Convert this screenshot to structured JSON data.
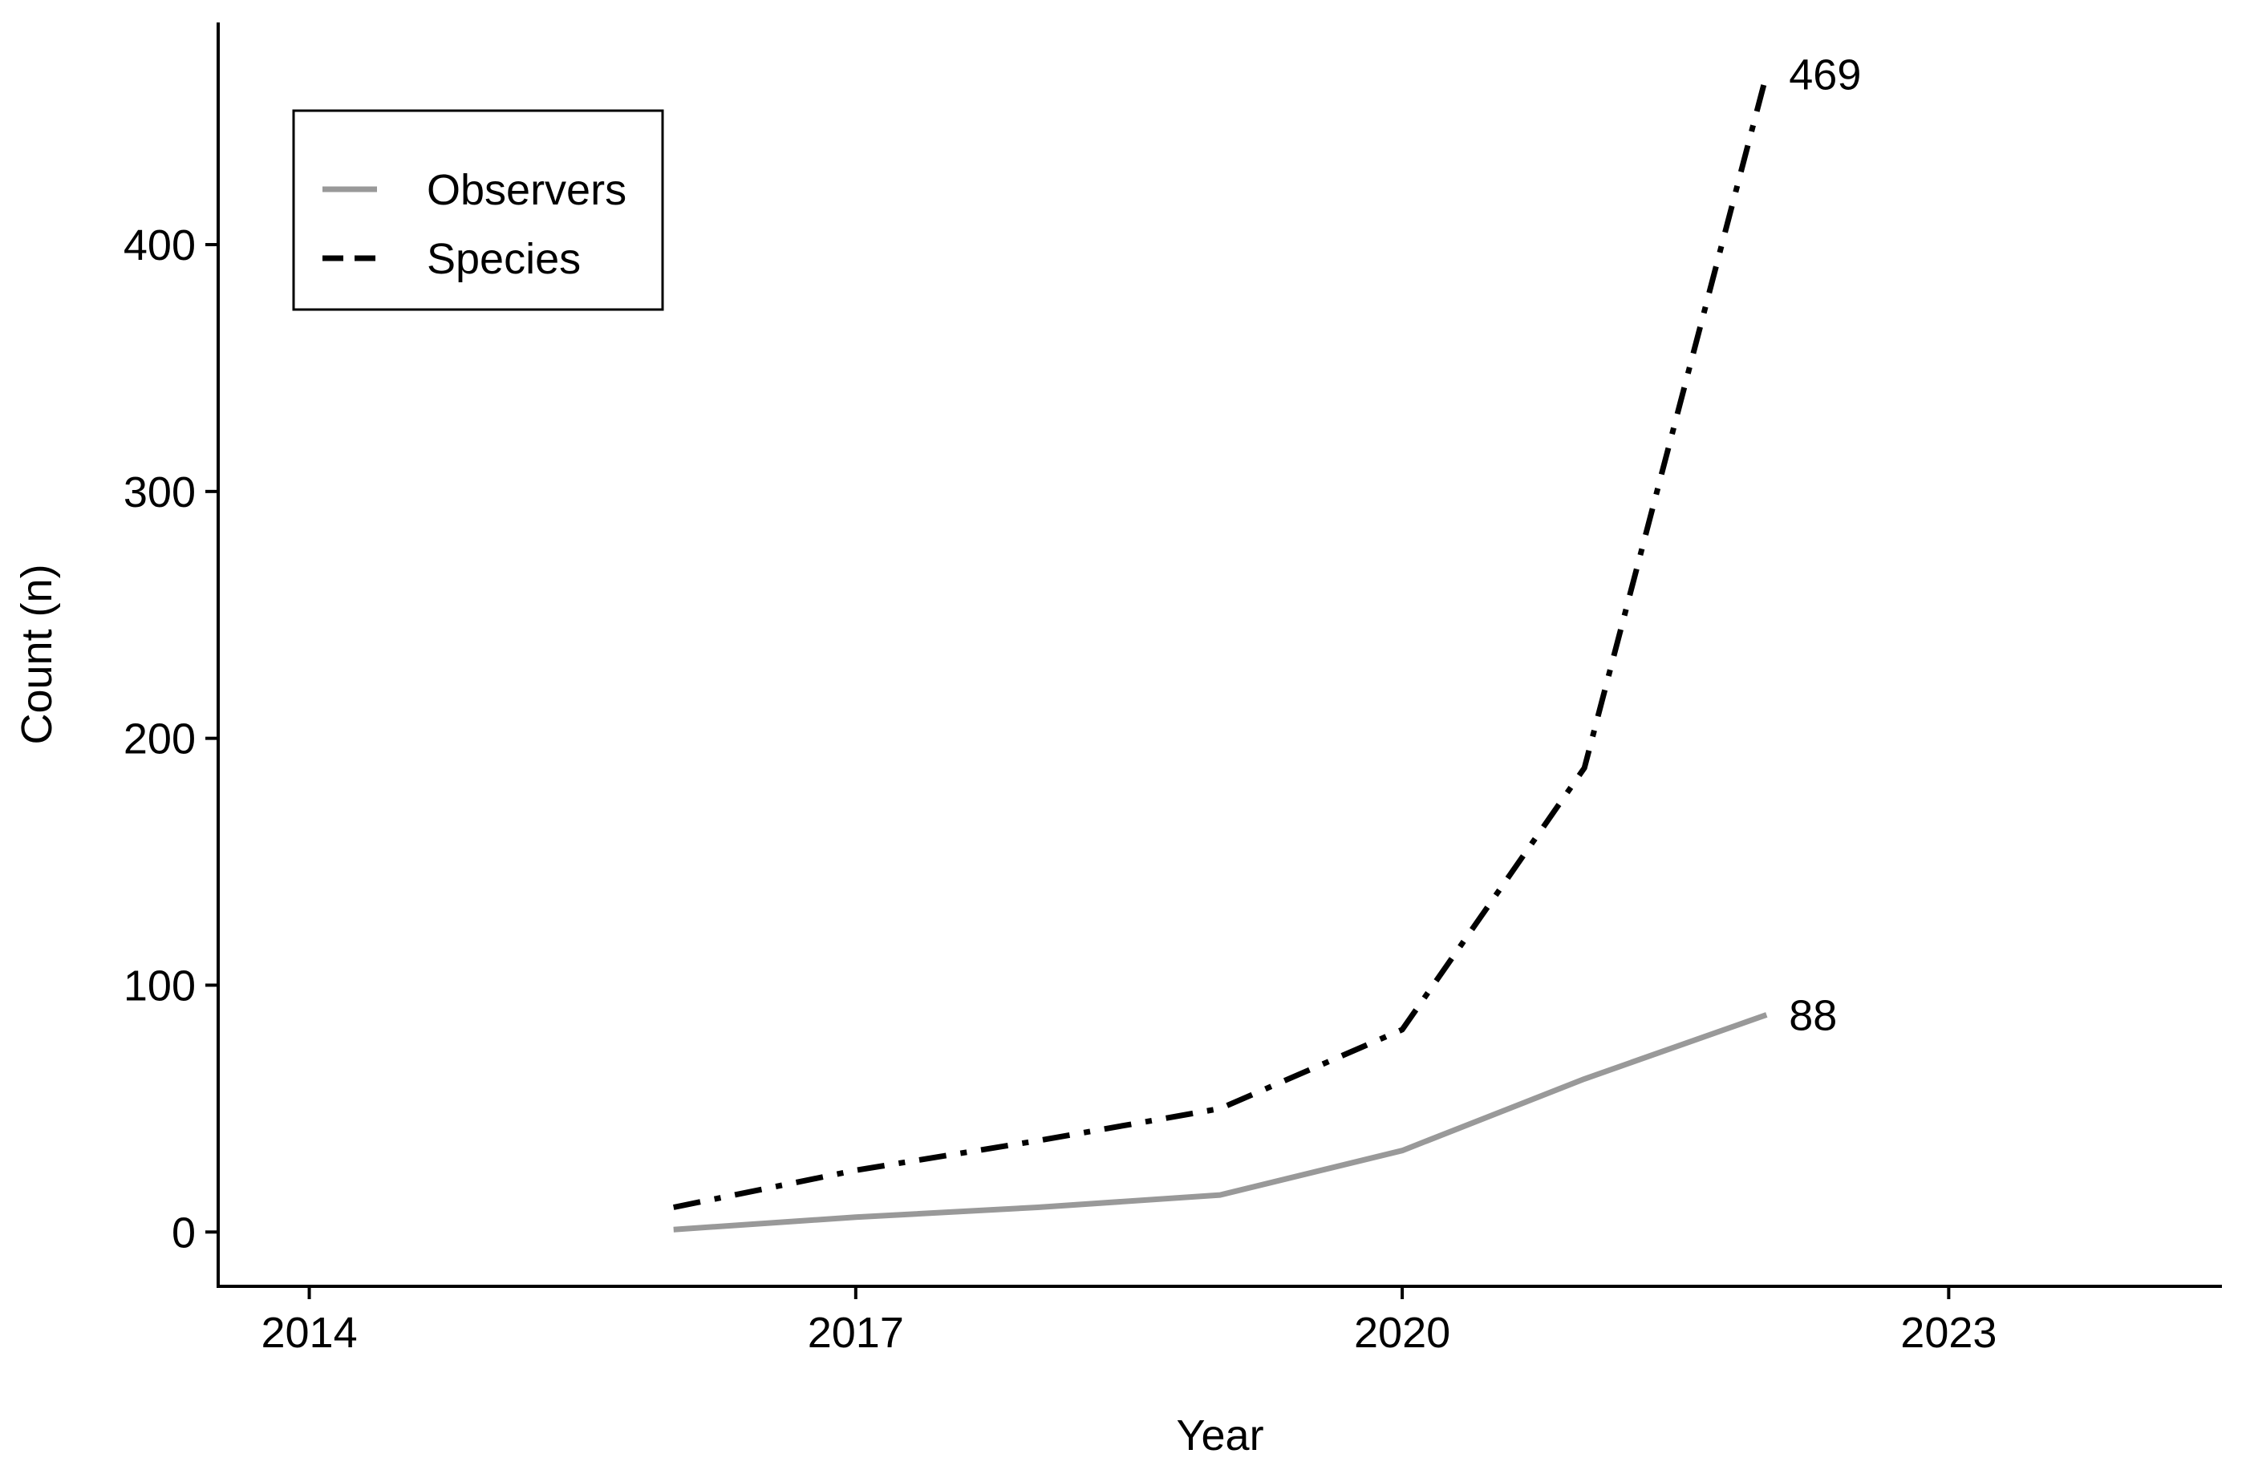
{
  "chart_data": {
    "type": "line",
    "title": "",
    "xlabel": "Year",
    "ylabel": "Count (n)",
    "xlim": [
      2013.5,
      2024.5
    ],
    "ylim": [
      -22,
      490
    ],
    "xticks": [
      2014,
      2017,
      2020,
      2023
    ],
    "yticks": [
      0,
      100,
      200,
      300,
      400
    ],
    "grid": false,
    "legend": "top-left",
    "series": [
      {
        "name": "Observers",
        "color": "#999999",
        "linestyle": "solid",
        "x": [
          2016,
          2017,
          2018,
          2019,
          2020,
          2021,
          2022
        ],
        "values": [
          1,
          6,
          10,
          15,
          33,
          62,
          88
        ],
        "end_label": "88"
      },
      {
        "name": "Species",
        "color": "#000000",
        "linestyle": "dashdot",
        "x": [
          2016,
          2017,
          2018,
          2019,
          2020,
          2021,
          2022
        ],
        "values": [
          10,
          25,
          37,
          50,
          82,
          188,
          469
        ],
        "end_label": "469"
      }
    ]
  }
}
